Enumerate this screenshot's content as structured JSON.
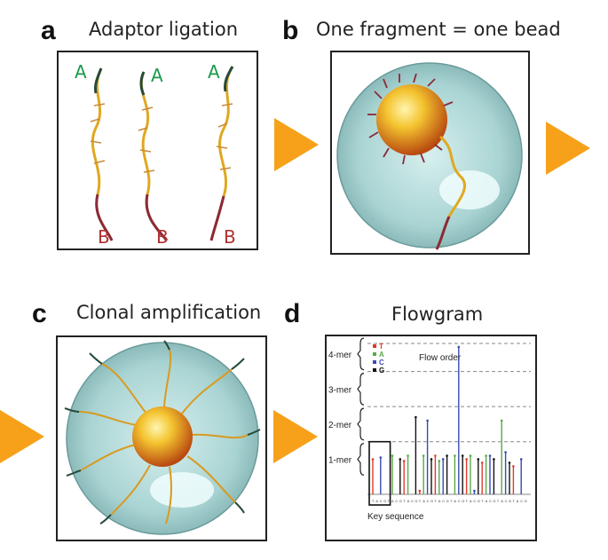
{
  "colors": {
    "arrow": "#f7a11a",
    "adaptor_a": "#1a9a4a",
    "adaptor_b": "#b03030",
    "series_T": "#e03a2a",
    "series_A": "#5aa84a",
    "series_C": "#3a4ab0",
    "series_G": "#111111"
  },
  "panels": {
    "a": {
      "letter": "a",
      "title": "Adaptor ligation",
      "label_a": "A",
      "label_b": "B"
    },
    "b": {
      "letter": "b",
      "title": "One fragment = one bead"
    },
    "c": {
      "letter": "c",
      "title": "Clonal amplification"
    },
    "d": {
      "letter": "d",
      "title": "Flowgram"
    }
  },
  "chart_data": {
    "type": "bar",
    "title": "Flowgram",
    "ylabels": [
      "4-mer",
      "3-mer",
      "2-mer",
      "1-mer"
    ],
    "ylim": [
      0,
      4.3
    ],
    "legend_title": "Flow order",
    "legend": [
      "T",
      "A",
      "C",
      "G"
    ],
    "key_sequence_label": "Key sequence",
    "series_order": [
      "T",
      "A",
      "C",
      "G"
    ],
    "values": [
      1.0,
      0,
      1.05,
      0,
      0,
      1.1,
      0,
      1.0,
      0.95,
      1.1,
      0,
      2.2,
      0.1,
      1.1,
      2.1,
      1.0,
      1.1,
      0.95,
      1.0,
      1.1,
      0,
      1.1,
      4.2,
      1.1,
      1.0,
      1.1,
      0.1,
      1.0,
      0.9,
      1.1,
      1.1,
      1.0,
      0,
      2.1,
      1.2,
      0.9,
      0.8,
      0,
      1.0,
      0
    ]
  }
}
